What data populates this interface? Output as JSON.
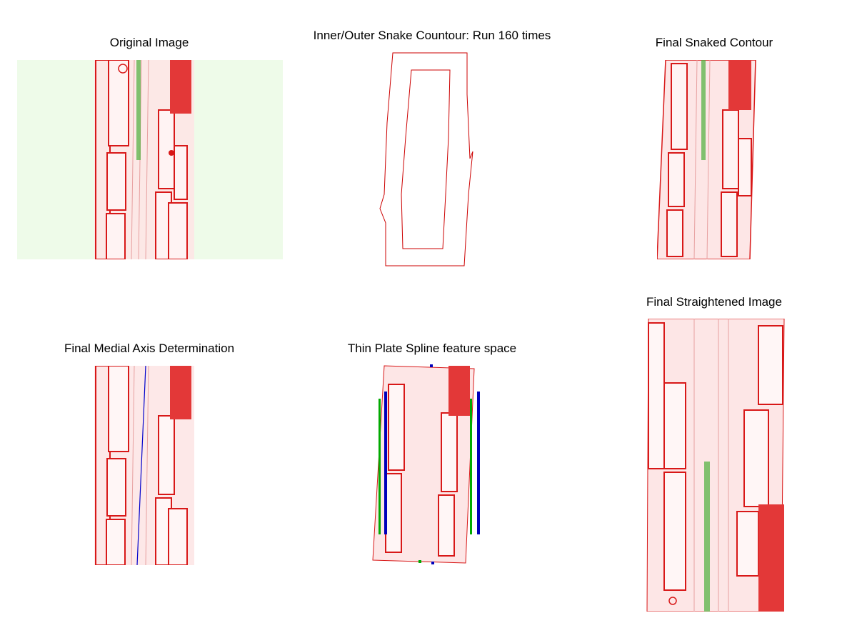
{
  "figure": {
    "panels": [
      {
        "id": "original",
        "title": "Original Image"
      },
      {
        "id": "snake",
        "title": "Inner/Outer Snake Countour: Run 160 times"
      },
      {
        "id": "snaked",
        "title": "Final Snaked Contour"
      },
      {
        "id": "medial",
        "title": "Final Medial Axis Determination"
      },
      {
        "id": "tps",
        "title": "Thin Plate Spline feature space"
      },
      {
        "id": "straight",
        "title": "Final Straightened Image"
      }
    ]
  },
  "colors": {
    "cell_wall": "#d81818",
    "cell_fill": "#fff2f2",
    "bg_green_tint": "#eefbe9",
    "vascular_green": "#4caf3a",
    "snake_contour": "#cc0000",
    "medial_axis": "#0000cc",
    "tps_blue_points": "#0000bb",
    "tps_green_points": "#00aa00"
  }
}
